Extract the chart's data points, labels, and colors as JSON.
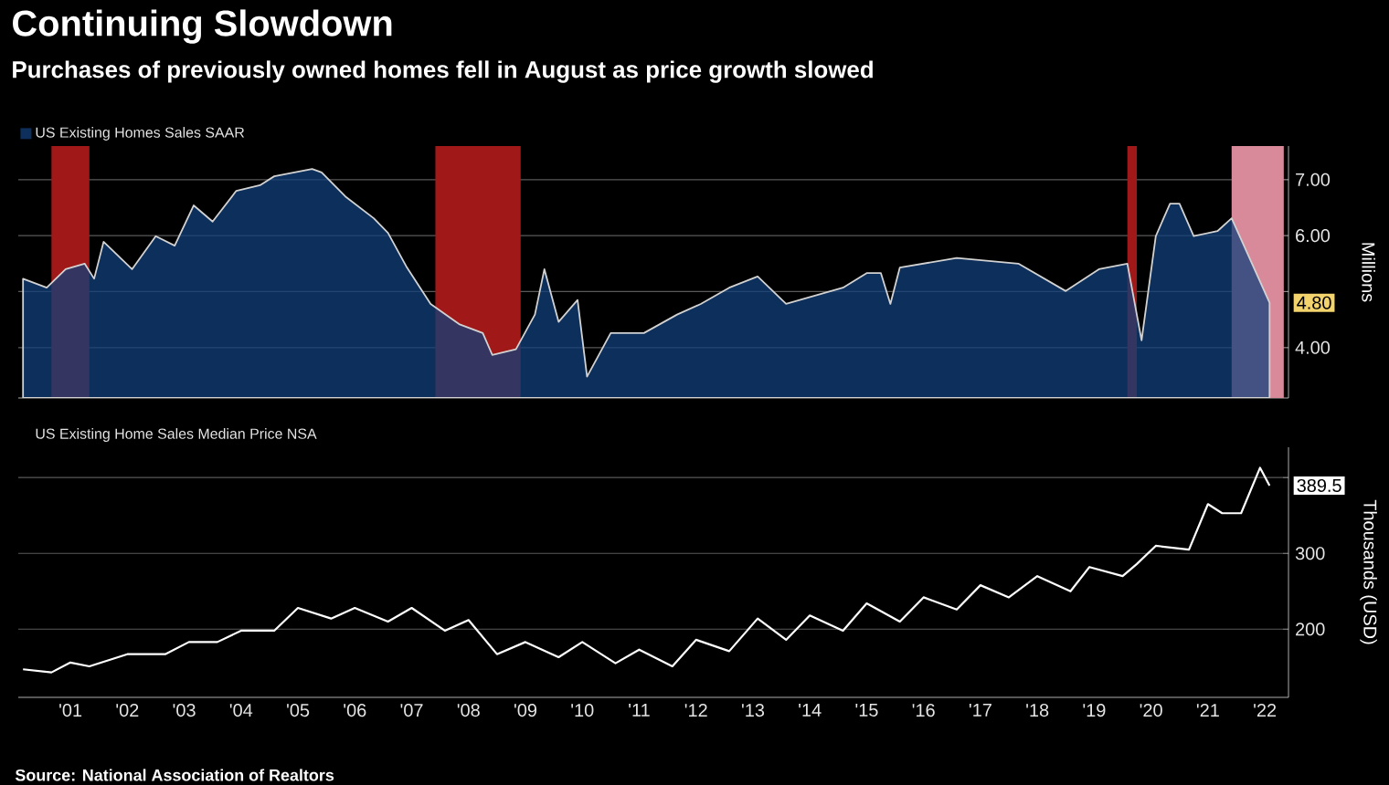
{
  "chart_data": [
    {
      "type": "area",
      "title": "Continuing Slowdown",
      "subtitle": "Purchases of previously owned homes fell in August as price growth slowed",
      "ylabel": "Millions",
      "x": [
        "2000-09",
        "2001-02",
        "2001-06",
        "2001-10",
        "2001-12",
        "2002-02",
        "2002-08",
        "2003-01",
        "2003-05",
        "2003-09",
        "2004-01",
        "2004-06",
        "2004-11",
        "2005-02",
        "2005-10",
        "2005-12",
        "2006-05",
        "2006-11",
        "2007-02",
        "2007-06",
        "2007-11",
        "2008-05",
        "2008-10",
        "2008-12",
        "2009-05",
        "2009-09",
        "2009-11",
        "2010-02",
        "2010-06",
        "2010-08",
        "2011-01",
        "2011-08",
        "2012-03",
        "2012-08",
        "2013-02",
        "2013-08",
        "2014-02",
        "2015-02",
        "2015-07",
        "2015-10",
        "2015-12",
        "2016-02",
        "2017-02",
        "2018-03",
        "2019-01",
        "2019-08",
        "2020-02",
        "2020-05",
        "2020-08",
        "2020-11",
        "2021-01",
        "2021-04",
        "2021-09",
        "2021-12",
        "2022-08"
      ],
      "series": [
        {
          "name": "US Existing Homes Sales SAAR",
          "color": "#123f7a",
          "values": [
            5.23,
            5.07,
            5.4,
            5.5,
            5.23,
            5.89,
            5.4,
            5.99,
            5.82,
            6.54,
            6.25,
            6.8,
            6.9,
            7.06,
            7.19,
            7.13,
            6.7,
            6.31,
            6.05,
            5.43,
            4.78,
            4.42,
            4.26,
            3.87,
            3.97,
            4.59,
            5.4,
            4.46,
            4.85,
            3.48,
            4.26,
            4.26,
            4.59,
            4.78,
            5.07,
            5.27,
            4.78,
            5.07,
            5.33,
            5.33,
            4.78,
            5.43,
            5.6,
            5.5,
            5.01,
            5.4,
            5.5,
            4.13,
            5.99,
            6.57,
            6.57,
            5.99,
            6.08,
            6.31,
            4.8
          ]
        }
      ],
      "xlim": [
        "2000-08",
        "2022-12"
      ],
      "xticks": [
        {
          "value": "2001-07",
          "label": null
        },
        {
          "value": "2002-07",
          "label": null
        },
        {
          "value": "2003-07",
          "label": null
        },
        {
          "value": "2004-07",
          "label": null
        },
        {
          "value": "2005-07",
          "label": null
        },
        {
          "value": "2006-07",
          "label": null
        },
        {
          "value": "2007-07",
          "label": null
        },
        {
          "value": "2008-07",
          "label": null
        },
        {
          "value": "2009-07",
          "label": null
        },
        {
          "value": "2010-07",
          "label": null
        },
        {
          "value": "2011-07",
          "label": null
        },
        {
          "value": "2012-07",
          "label": null
        },
        {
          "value": "2013-07",
          "label": null
        },
        {
          "value": "2014-07",
          "label": null
        },
        {
          "value": "2015-07",
          "label": null
        },
        {
          "value": "2016-07",
          "label": null
        },
        {
          "value": "2017-07",
          "label": null
        },
        {
          "value": "2018-07",
          "label": null
        },
        {
          "value": "2019-07",
          "label": null
        },
        {
          "value": "2020-07",
          "label": null
        },
        {
          "value": "2021-07",
          "label": null
        },
        {
          "value": "2022-07",
          "label": null
        }
      ],
      "ylim": [
        3.1,
        7.6
      ],
      "yticks": [
        {
          "value": 4,
          "label": "4.00"
        },
        {
          "value": 5,
          "label": null
        },
        {
          "value": 6,
          "label": "6.00"
        },
        {
          "value": 7,
          "label": "7.00"
        }
      ],
      "tick_labels": "y",
      "grid": "y",
      "legend": "top left",
      "bands": [
        {
          "axis": "x",
          "from": "2001-03",
          "to": "2001-11",
          "color": "#a01818"
        },
        {
          "axis": "x",
          "from": "2007-12",
          "to": "2009-06",
          "color": "#a01818"
        },
        {
          "axis": "x",
          "from": "2020-02",
          "to": "2020-04",
          "color": "#a01818"
        },
        {
          "axis": "x",
          "from": "2021-12",
          "to": "2022-11",
          "color": "#d88a9a"
        }
      ],
      "annotations": [
        {
          "text": "4.80",
          "x": "2022-08",
          "y": 4.8
        }
      ]
    },
    {
      "type": "line",
      "ylabel": "Thousands (USD)",
      "x": [
        "2000-09",
        "2001-03",
        "2001-07",
        "2001-11",
        "2002-07",
        "2003-03",
        "2003-08",
        "2004-02",
        "2004-07",
        "2005-02",
        "2005-07",
        "2006-02",
        "2006-07",
        "2007-02",
        "2007-07",
        "2008-02",
        "2008-07",
        "2009-01",
        "2009-07",
        "2010-02",
        "2010-07",
        "2011-02",
        "2011-07",
        "2012-02",
        "2012-07",
        "2013-02",
        "2013-08",
        "2014-02",
        "2014-07",
        "2015-02",
        "2015-07",
        "2016-02",
        "2016-07",
        "2017-02",
        "2017-07",
        "2018-01",
        "2018-07",
        "2019-02",
        "2019-06",
        "2020-01",
        "2020-04",
        "2020-08",
        "2021-03",
        "2021-07",
        "2021-10",
        "2022-02",
        "2022-06",
        "2022-08"
      ],
      "series": [
        {
          "name": "US Existing Home Sales Median Price NSA",
          "color": "#ffffff",
          "values": [
            147,
            143,
            156,
            151,
            167,
            167,
            183,
            183,
            198,
            198,
            228,
            214,
            228,
            210,
            228,
            198,
            212,
            167,
            183,
            163,
            183,
            155,
            173,
            151,
            186,
            171,
            214,
            186,
            218,
            198,
            234,
            210,
            242,
            226,
            258,
            242,
            270,
            250,
            282,
            270,
            286,
            310,
            305,
            365,
            353,
            353,
            413,
            389.5
          ]
        }
      ],
      "xlim": [
        "2000-08",
        "2022-12"
      ],
      "xticks": [
        {
          "value": "2001-07",
          "label": "'01"
        },
        {
          "value": "2002-07",
          "label": "'02"
        },
        {
          "value": "2003-07",
          "label": "'03"
        },
        {
          "value": "2004-07",
          "label": "'04"
        },
        {
          "value": "2005-07",
          "label": "'05"
        },
        {
          "value": "2006-07",
          "label": "'06"
        },
        {
          "value": "2007-07",
          "label": "'07"
        },
        {
          "value": "2008-07",
          "label": "'08"
        },
        {
          "value": "2009-07",
          "label": "'09"
        },
        {
          "value": "2010-07",
          "label": "'10"
        },
        {
          "value": "2011-07",
          "label": "'11"
        },
        {
          "value": "2012-07",
          "label": "'12"
        },
        {
          "value": "2013-07",
          "label": "'13"
        },
        {
          "value": "2014-07",
          "label": "'14"
        },
        {
          "value": "2015-07",
          "label": "'15"
        },
        {
          "value": "2016-07",
          "label": "'16"
        },
        {
          "value": "2017-07",
          "label": "'17"
        },
        {
          "value": "2018-07",
          "label": "'18"
        },
        {
          "value": "2019-07",
          "label": "'19"
        },
        {
          "value": "2020-07",
          "label": "'20"
        },
        {
          "value": "2021-07",
          "label": "'21"
        },
        {
          "value": "2022-07",
          "label": "'22"
        }
      ],
      "ylim": [
        110,
        440
      ],
      "yticks": [
        200,
        300,
        {
          "value": 400,
          "label": null
        }
      ],
      "grid": "y",
      "legend": "top left",
      "annotations": [
        {
          "text": "389.5",
          "x": "2022-08",
          "y": 389.5
        },
        "Source: National Association of Realtors"
      ]
    }
  ]
}
